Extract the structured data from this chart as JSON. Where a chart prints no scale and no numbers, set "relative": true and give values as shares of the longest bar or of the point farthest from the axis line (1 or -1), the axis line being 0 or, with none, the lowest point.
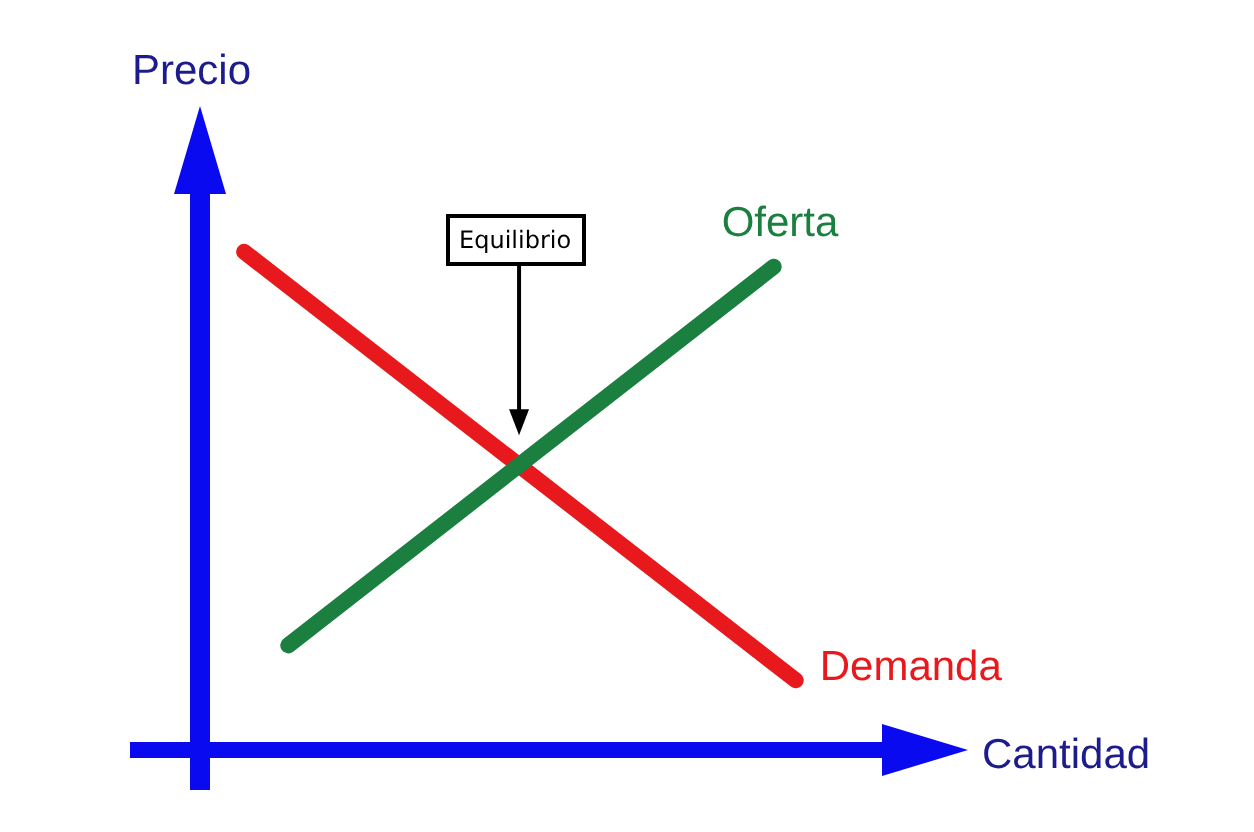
{
  "chart_data": {
    "type": "line",
    "xlabel": "Cantidad",
    "ylabel": "Precio",
    "annotations": [
      "Equilibrio"
    ],
    "relative": true,
    "categories": [
      null,
      null,
      null,
      null,
      null,
      null,
      null,
      null,
      null,
      null,
      null,
      null,
      null,
      null,
      null,
      null,
      null,
      null,
      null,
      null,
      null,
      null,
      null,
      null,
      null,
      null,
      null,
      null,
      null,
      null,
      null,
      null
    ],
    "series": [
      {
        "name": "Oferta",
        "color": "#1a7f3f",
        "values": [
          null,
          null,
          null,
          null,
          0.21,
          null,
          null,
          null,
          null,
          null,
          null,
          null,
          null,
          null,
          null,
          null,
          null,
          null,
          null,
          null,
          null,
          null,
          null,
          null,
          null,
          null,
          0.97,
          null,
          null,
          null,
          null,
          null
        ]
      },
      {
        "name": "Demanda",
        "color": "#e8191c",
        "values": [
          null,
          null,
          1.0,
          null,
          null,
          null,
          null,
          null,
          null,
          null,
          null,
          null,
          null,
          null,
          null,
          null,
          null,
          null,
          null,
          null,
          null,
          null,
          null,
          null,
          null,
          null,
          null,
          0.14,
          null,
          null,
          null,
          null
        ]
      }
    ]
  }
}
